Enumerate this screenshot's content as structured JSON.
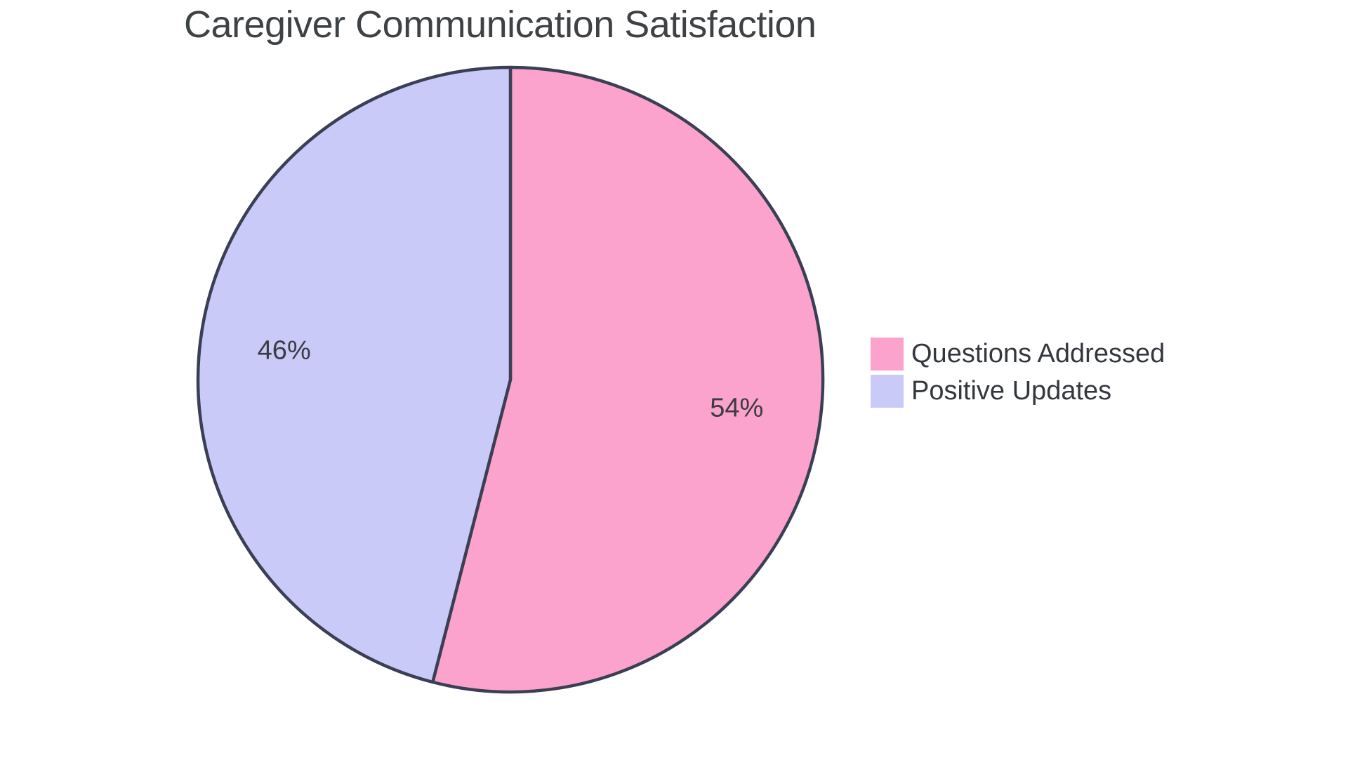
{
  "chart_data": {
    "type": "pie",
    "title": "Caregiver Communication Satisfaction",
    "slices": [
      {
        "label": "Questions Addressed",
        "value": 54,
        "pct_label": "54%",
        "color": "#FCA3CD"
      },
      {
        "label": "Positive Updates",
        "value": 46,
        "pct_label": "46%",
        "color": "#C9CAF8"
      }
    ],
    "start_angle_deg": 0,
    "direction": "clockwise",
    "outline_color": "#3B3F54",
    "outline_width": 4.5,
    "title_color": "#3F4245",
    "label_color": "#393D42",
    "background": "#FFFFFF",
    "legend_position": "middle-right",
    "grid": false
  }
}
